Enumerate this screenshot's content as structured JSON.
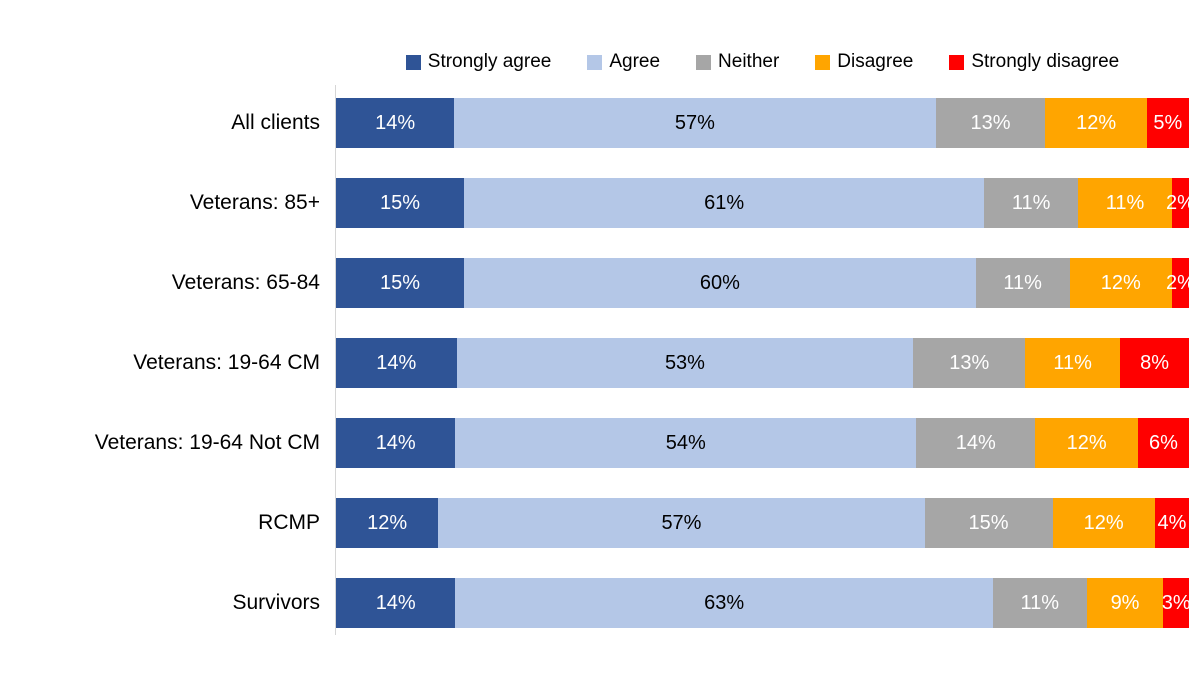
{
  "chart_data": {
    "type": "bar",
    "orientation": "horizontal",
    "stacked": true,
    "stack_total": 100,
    "value_suffix": "%",
    "title": "",
    "xlabel": "",
    "ylabel": "",
    "grid": false,
    "legend_position": "top",
    "background_color": "#FFFFFF",
    "axis_line_color": "#D6D6D6",
    "categories": [
      "All clients",
      "Veterans: 85+",
      "Veterans: 65-84",
      "Veterans: 19-64 CM",
      "Veterans: 19-64 Not CM",
      "RCMP",
      "Survivors"
    ],
    "series": [
      {
        "name": "Strongly agree",
        "color": "#2F5496",
        "label_color": "#FFFFFF",
        "values": [
          14,
          15,
          15,
          14,
          14,
          12,
          14
        ]
      },
      {
        "name": "Agree",
        "color": "#B4C7E7",
        "label_color": "#000000",
        "values": [
          57,
          61,
          60,
          53,
          54,
          57,
          63
        ]
      },
      {
        "name": "Neither",
        "color": "#A6A6A6",
        "label_color": "#FFFFFF",
        "values": [
          13,
          11,
          11,
          13,
          14,
          15,
          11
        ]
      },
      {
        "name": "Disagree",
        "color": "#FFA500",
        "label_color": "#FFFFFF",
        "values": [
          12,
          11,
          12,
          11,
          12,
          12,
          9
        ]
      },
      {
        "name": "Strongly disagree",
        "color": "#FF0000",
        "label_color": "#FFFFFF",
        "values": [
          5,
          2,
          2,
          8,
          6,
          4,
          3
        ]
      }
    ]
  }
}
